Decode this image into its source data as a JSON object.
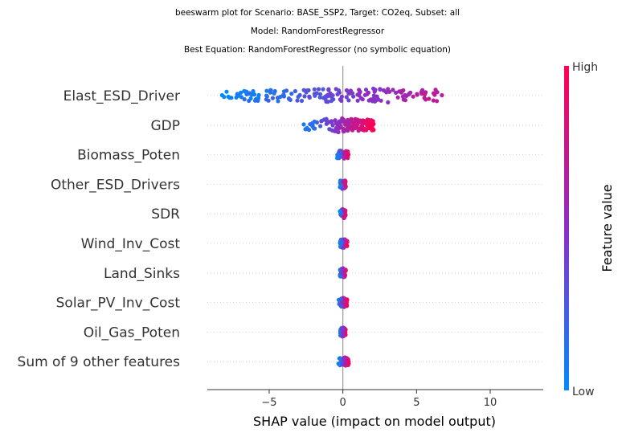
{
  "chart_data": {
    "type": "scatter",
    "title": [
      "beeswarm plot for Scenario: BASE_SSP2, Target: CO2eq, Subset: all",
      "Model: RandomForestRegressor",
      "Best Equation: RandomForestRegressor (no symbolic equation)"
    ],
    "xlabel": "SHAP value (impact on model output)",
    "xlim": [
      -9.2,
      13.6
    ],
    "xticks": [
      -5,
      0,
      5,
      10
    ],
    "xtick_labels": [
      "−5",
      "0",
      "5",
      "10"
    ],
    "grid": false,
    "features": [
      {
        "name": "Elast_ESD_Driver",
        "min": -8.2,
        "max": 12.4
      },
      {
        "name": "GDP",
        "min": -2.8,
        "max": 2.1
      },
      {
        "name": "Biomass_Poten",
        "min": -0.4,
        "max": 0.4
      },
      {
        "name": "Other_ESD_Drivers",
        "min": -0.2,
        "max": 0.2
      },
      {
        "name": "SDR",
        "min": -0.2,
        "max": 0.2
      },
      {
        "name": "Wind_Inv_Cost",
        "min": -0.2,
        "max": 0.3
      },
      {
        "name": "Land_Sinks",
        "min": -0.2,
        "max": 0.2
      },
      {
        "name": "Solar_PV_Inv_Cost",
        "min": -0.3,
        "max": 0.3
      },
      {
        "name": "Oil_Gas_Poten",
        "min": -0.2,
        "max": 0.2
      },
      {
        "name": "Sum of 9 other features",
        "min": -0.3,
        "max": 0.4
      }
    ],
    "colorbar": {
      "label": "Feature value",
      "high_label": "High",
      "low_label": "Low",
      "low_color": "#008afb",
      "mid_color": "#8c2ec4",
      "high_color": "#ff0052"
    }
  }
}
